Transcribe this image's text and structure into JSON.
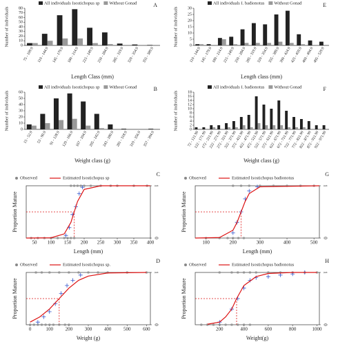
{
  "chart_data": [
    {
      "type": "bar",
      "title": "A",
      "xlabel": "Length Class (mm)",
      "ylabel": "Number of individuals",
      "categories": [
        "75 - 109.9",
        "110 - 144.9",
        "145 - 179.9",
        "180 - 214.9",
        "215 - 249.9",
        "250 - 284.9",
        "285 - 319.9",
        "320 - 354.9",
        "355 - 389.9"
      ],
      "series": [
        {
          "name": "All individuals Isostichopus sp",
          "color": "#222222",
          "values": [
            5,
            25,
            65,
            78,
            38,
            28,
            4,
            2,
            1
          ]
        },
        {
          "name": "Without Gonad",
          "color": "#999999",
          "values": [
            5,
            10,
            15,
            15,
            5,
            3,
            0,
            0,
            0
          ]
        }
      ],
      "ylim": [
        0,
        80
      ],
      "yticks": [
        0,
        10,
        20,
        30,
        40,
        50,
        60,
        70,
        80
      ]
    },
    {
      "type": "bar",
      "title": "E",
      "xlabel": "Length class (mm)",
      "ylabel": "Number of individuals",
      "categories": [
        "110 - 144.9",
        "145 - 179.9",
        "180 - 214.9",
        "215 - 249.9",
        "250 - 284.9",
        "285 - 319.9",
        "320 - 354.9",
        "355 - 389.9",
        "390 - 424.9",
        "425 - 459.9",
        "460 - 494.9",
        "495 - 529.9"
      ],
      "series": [
        {
          "name": "All individuals I. badionotus",
          "color": "#222222",
          "values": [
            1,
            1,
            6,
            7,
            13,
            18,
            17,
            25,
            28,
            9,
            4,
            3
          ]
        },
        {
          "name": "Without Gonad",
          "color": "#999999",
          "values": [
            1,
            0,
            5,
            1,
            2,
            2,
            2,
            3,
            2,
            1,
            0,
            0
          ]
        }
      ],
      "ylim": [
        0,
        30
      ],
      "yticks": [
        0,
        5,
        10,
        15,
        20,
        25,
        30
      ]
    },
    {
      "type": "bar",
      "title": "B",
      "xlabel": "Weight class (g)",
      "ylabel": "Number of individuals",
      "categories": [
        "15 - 52.9",
        "53 - 90.9",
        "91 - 128.9",
        "129 - 166.9",
        "167 - 204.9",
        "205 - 242.9",
        "243 - 280.9",
        "281 - 318.9",
        "319 - 356.9",
        "357 - 394.9"
      ],
      "series": [
        {
          "name": "All individuals Isostichopus sp",
          "color": "#222222",
          "values": [
            8,
            25,
            50,
            58,
            45,
            25,
            8,
            1,
            0,
            1
          ]
        },
        {
          "name": "Without Gonad",
          "color": "#999999",
          "values": [
            6,
            10,
            15,
            17,
            6,
            2,
            0,
            0,
            0,
            0
          ]
        }
      ],
      "ylim": [
        0,
        60
      ],
      "yticks": [
        0,
        10,
        20,
        30,
        40,
        50,
        60
      ]
    },
    {
      "type": "bar",
      "title": "F",
      "xlabel": "Weight class (g)",
      "ylabel": "Number of individuals",
      "categories": [
        "72 - 121.99",
        "122 - 171.99",
        "172 - 221.99",
        "222 - 271.99",
        "272 - 321.99",
        "322 - 371.99",
        "372 - 421.99",
        "422 - 471.99",
        "472 - 521.99",
        "522 - 571.99",
        "572 - 621.99",
        "622 - 671.99",
        "672 - 721.99",
        "722 - 771.99",
        "772 - 821.99",
        "822 - 871.99",
        "872 - 921.99",
        "922 - 971.99"
      ],
      "series": [
        {
          "name": "All individuals I. badionotus",
          "color": "#222222",
          "values": [
            1,
            1,
            2,
            2,
            3,
            4,
            6,
            7,
            16,
            12,
            10,
            14,
            9,
            6,
            5,
            4,
            2,
            2
          ]
        },
        {
          "name": "Without Gonad",
          "color": "#999999",
          "values": [
            0,
            0,
            1,
            0,
            1,
            1,
            2,
            1,
            3,
            2,
            2,
            2,
            1,
            1,
            1,
            0,
            0,
            0
          ]
        }
      ],
      "ylim": [
        0,
        18
      ],
      "yticks": [
        0,
        2,
        4,
        6,
        8,
        10,
        12,
        14,
        16,
        18
      ]
    },
    {
      "type": "logistic",
      "title": "C",
      "xlabel": "Length (mm)",
      "ylabel": "Proportion Mature",
      "xlim": [
        25,
        400
      ],
      "xticks": [
        50,
        100,
        150,
        200,
        250,
        300,
        350,
        400
      ],
      "ylim": [
        0,
        1
      ],
      "y2ticks": [
        0,
        1
      ],
      "l50": 170,
      "series": [
        {
          "name": "Observed",
          "color": "#888888",
          "x": [
            40,
            60,
            80,
            100,
            120,
            140,
            150,
            160,
            170,
            160,
            170,
            180,
            190,
            200,
            220,
            250,
            280,
            300,
            350,
            390
          ],
          "values": [
            0,
            0,
            0,
            0,
            0,
            0,
            0,
            0,
            0,
            1,
            1,
            1,
            1,
            1,
            1,
            1,
            1,
            1,
            1,
            1
          ]
        },
        {
          "color": "#3355cc",
          "x": [
            145,
            155,
            165,
            175,
            185,
            195
          ],
          "values": [
            0.05,
            0.2,
            0.45,
            0.6,
            0.85,
            0.97
          ]
        },
        {
          "name": "Estimated Isostichopus sp",
          "color": "#dd1111",
          "x": [
            25,
            100,
            140,
            160,
            170,
            180,
            200,
            250,
            400
          ],
          "values": [
            0,
            0.005,
            0.08,
            0.3,
            0.5,
            0.7,
            0.93,
            1,
            1
          ]
        }
      ]
    },
    {
      "type": "logistic",
      "title": "G",
      "xlabel": "Length (mm)",
      "ylabel": "Proportion Mature",
      "xlim": [
        60,
        520
      ],
      "xticks": [
        100,
        200,
        300,
        400,
        500
      ],
      "ylim": [
        0,
        1
      ],
      "y2ticks": [
        0,
        1
      ],
      "l50": 230,
      "series": [
        {
          "name": "Observed",
          "color": "#888888",
          "x": [
            100,
            150,
            180,
            200,
            220,
            240,
            200,
            230,
            260,
            300,
            350,
            400,
            450,
            500
          ],
          "values": [
            0,
            0,
            0,
            0,
            0,
            0,
            1,
            1,
            1,
            1,
            1,
            1,
            1,
            1
          ]
        },
        {
          "color": "#3355cc",
          "x": [
            200,
            215,
            230,
            245,
            260,
            290
          ],
          "values": [
            0.1,
            0.3,
            0.5,
            0.75,
            0.9,
            0.98
          ]
        },
        {
          "name": "Estimated Isostichopus badionotus",
          "color": "#dd1111",
          "x": [
            60,
            150,
            200,
            215,
            230,
            245,
            260,
            300,
            520
          ],
          "values": [
            0,
            0.01,
            0.15,
            0.3,
            0.5,
            0.7,
            0.85,
            0.98,
            1
          ]
        }
      ]
    },
    {
      "type": "logistic",
      "title": "D",
      "xlabel": "Weight (g)",
      "ylabel": "Proportion Mature",
      "xlim": [
        -20,
        620
      ],
      "xticks": [
        0,
        100,
        200,
        300,
        400,
        500,
        600
      ],
      "ylim": [
        0,
        1
      ],
      "y2ticks": [
        0,
        1
      ],
      "l50": 150,
      "series": [
        {
          "name": "Observed",
          "color": "#888888",
          "x": [
            0,
            20,
            40,
            60,
            80,
            100,
            120,
            150,
            180,
            200,
            30,
            60,
            100,
            150,
            200,
            250,
            300,
            350,
            400,
            500,
            600
          ],
          "values": [
            0,
            0,
            0,
            0,
            0,
            0,
            0,
            0,
            0,
            0,
            1,
            1,
            1,
            1,
            1,
            1,
            1,
            1,
            1,
            1,
            1
          ]
        },
        {
          "color": "#3355cc",
          "x": [
            40,
            70,
            100,
            130,
            160,
            190,
            220,
            260
          ],
          "values": [
            0.05,
            0.15,
            0.25,
            0.4,
            0.6,
            0.75,
            0.85,
            0.95
          ]
        },
        {
          "name": "Estimated Isostichopus sp.",
          "color": "#dd1111",
          "x": [
            0,
            50,
            100,
            150,
            200,
            250,
            300,
            400,
            600
          ],
          "values": [
            0.05,
            0.15,
            0.3,
            0.5,
            0.7,
            0.85,
            0.93,
            0.99,
            1
          ]
        }
      ]
    },
    {
      "type": "logistic",
      "title": "H",
      "xlabel": "Weight(g)",
      "ylabel": "Proportion Mature",
      "xlim": [
        0,
        1020
      ],
      "xticks": [
        200,
        400,
        600,
        800,
        1000
      ],
      "ylim": [
        0,
        1
      ],
      "y2ticks": [
        0,
        1
      ],
      "l50": 340,
      "series": [
        {
          "name": "Observed",
          "color": "#888888",
          "x": [
            50,
            100,
            150,
            200,
            250,
            300,
            350,
            400,
            450,
            200,
            300,
            350,
            400,
            450,
            500,
            600,
            700,
            800,
            900,
            1000
          ],
          "values": [
            0,
            0,
            0,
            0,
            0,
            0,
            0,
            0,
            0,
            1,
            1,
            1,
            1,
            1,
            1,
            1,
            1,
            1,
            1,
            1
          ]
        },
        {
          "color": "#3355cc",
          "x": [
            200,
            300,
            350,
            400,
            450,
            500,
            600,
            700,
            800,
            900
          ],
          "values": [
            0.05,
            0.3,
            0.5,
            0.7,
            0.85,
            0.9,
            0.92,
            0.95,
            0.97,
            1
          ]
        },
        {
          "name": "Estimated Isostichopus badionotus",
          "color": "#dd1111",
          "x": [
            100,
            200,
            250,
            300,
            340,
            400,
            500,
            600,
            800,
            1000
          ],
          "values": [
            0.01,
            0.05,
            0.15,
            0.3,
            0.5,
            0.75,
            0.92,
            0.98,
            1,
            1
          ]
        }
      ]
    }
  ]
}
